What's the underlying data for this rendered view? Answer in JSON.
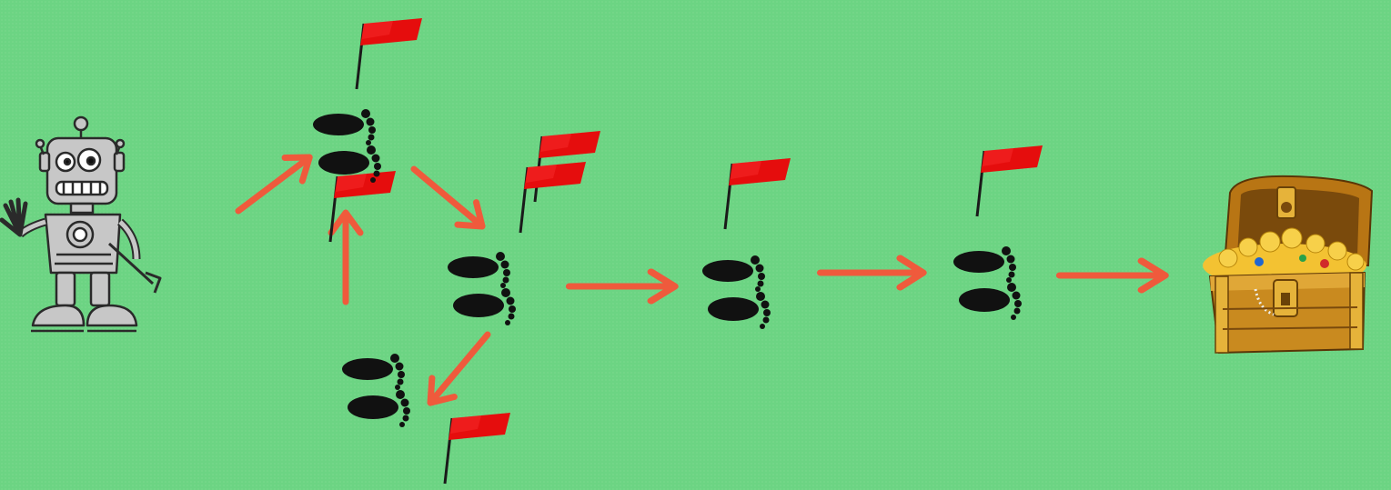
{
  "scene": {
    "start_icon": "robot-icon",
    "goal_icon": "treasure-chest-icon",
    "step_icon": "footprints-icon",
    "marker_icon": "red-flag-icon",
    "arrow_icon": "arrow-icon",
    "footprint_count": 5,
    "flag_count": 7,
    "arrow_count": 7
  },
  "colors": {
    "background": "#6cd483",
    "arrow": "#ef5a3c",
    "flag": "#e50d0d",
    "footprint": "#111111",
    "chest_wood": "#c98a1f",
    "gold": "#f3c232"
  }
}
